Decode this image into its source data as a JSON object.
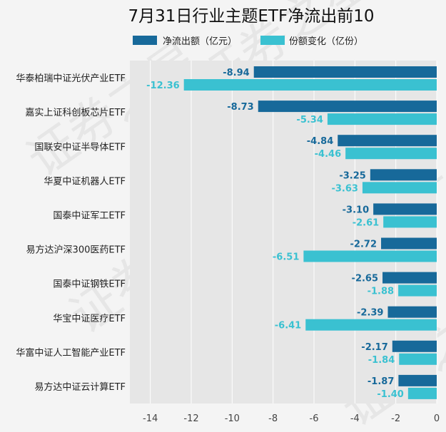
{
  "colors": {
    "net_outflow": "#17699a",
    "share_change": "#3ac1d1",
    "plot_bg": "#e6e6e6",
    "page_bg": "#f4f4f4"
  },
  "watermark_text": "证券之星",
  "chart_data": {
    "type": "bar",
    "orientation": "horizontal",
    "title": "7月31日行业主题ETF净流出前10",
    "categories": [
      "华泰柏瑞中证光伏产业ETF",
      "嘉实上证科创板芯片ETF",
      "国联安中证半导体ETF",
      "华夏中证机器人ETF",
      "国泰中证军工ETF",
      "易方达沪深300医药ETF",
      "国泰中证钢铁ETF",
      "华宝中证医疗ETF",
      "华富中证人工智能产业ETF",
      "易方达中证云计算ETF"
    ],
    "series": [
      {
        "name": "净流出额（亿元）",
        "values": [
          -8.94,
          -8.73,
          -4.84,
          -3.25,
          -3.1,
          -2.72,
          -2.65,
          -2.39,
          -2.17,
          -1.87
        ]
      },
      {
        "name": "份额变化（亿份）",
        "values": [
          -12.36,
          -5.34,
          -4.46,
          -3.63,
          -2.61,
          -6.51,
          -1.88,
          -6.41,
          -1.84,
          -1.4
        ]
      }
    ],
    "xlim": [
      -15,
      0
    ],
    "xticks": [
      -14,
      -12,
      -10,
      -8,
      -6,
      -4,
      -2,
      0
    ],
    "xlabel": "",
    "ylabel": "",
    "grid": true,
    "legend_position": "top"
  }
}
